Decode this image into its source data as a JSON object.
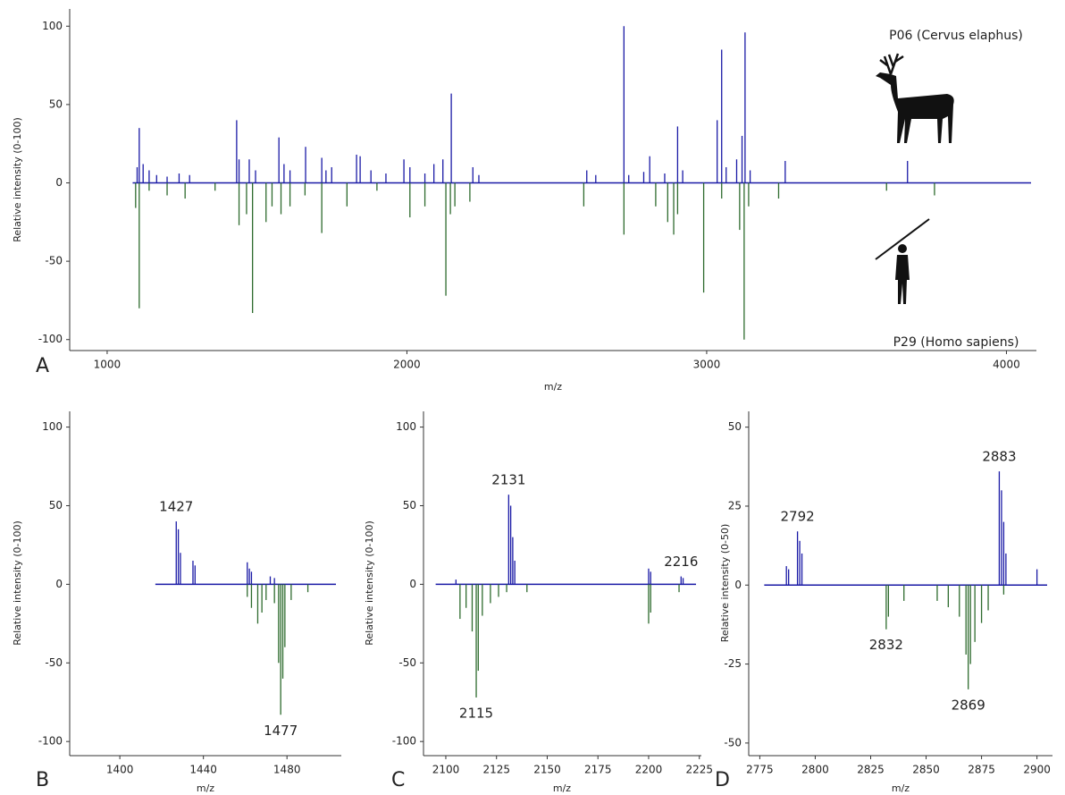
{
  "chart_data": [
    {
      "type": "stem",
      "panel": "A",
      "xlabel": "m/z",
      "ylabel": "Relative intensity (0-100)",
      "xlim": [
        875,
        4100
      ],
      "ylim": [
        -107,
        111
      ],
      "xticks": [
        1000,
        2000,
        3000,
        4000
      ],
      "yticks": [
        -100,
        -50,
        0,
        50,
        100
      ],
      "series": [
        {
          "name": "P06 (Cervus elaphus)",
          "color": "#1a1aa6",
          "x": [
            1100,
            1107,
            1120,
            1140,
            1165,
            1200,
            1240,
            1275,
            1432,
            1440,
            1474,
            1495,
            1573,
            1590,
            1610,
            1662,
            1716,
            1730,
            1749,
            1832,
            1844,
            1880,
            1930,
            1990,
            2010,
            2060,
            2090,
            2120,
            2148,
            2220,
            2240,
            2600,
            2630,
            2724,
            2740,
            2790,
            2810,
            2860,
            2903,
            2920,
            3035,
            3050,
            3065,
            3100,
            3118,
            3128,
            3145,
            3262,
            3670
          ],
          "values": [
            10,
            35,
            12,
            8,
            5,
            4,
            6,
            5,
            40,
            15,
            15,
            8,
            29,
            12,
            8,
            23,
            16,
            8,
            10,
            18,
            17,
            8,
            6,
            15,
            10,
            6,
            12,
            15,
            57,
            10,
            5,
            8,
            5,
            100,
            5,
            7,
            17,
            6,
            36,
            8,
            40,
            85,
            10,
            15,
            30,
            96,
            8,
            14,
            14
          ]
        },
        {
          "name": "P29 (Homo sapiens)",
          "color": "#2e6b2e",
          "x": [
            1095,
            1107,
            1140,
            1200,
            1260,
            1360,
            1440,
            1465,
            1485,
            1530,
            1550,
            1580,
            1610,
            1660,
            1716,
            1800,
            1900,
            2010,
            2060,
            2130,
            2145,
            2160,
            2210,
            2590,
            2724,
            2830,
            2870,
            2890,
            2903,
            2990,
            3050,
            3110,
            3125,
            3140,
            3240,
            3600,
            3760
          ],
          "values": [
            -16,
            -80,
            -5,
            -8,
            -10,
            -5,
            -27,
            -20,
            -83,
            -25,
            -15,
            -20,
            -15,
            -8,
            -32,
            -15,
            -5,
            -22,
            -15,
            -72,
            -20,
            -15,
            -12,
            -15,
            -33,
            -15,
            -25,
            -33,
            -20,
            -70,
            -10,
            -30,
            -100,
            -15,
            -10,
            -5,
            -8
          ]
        }
      ]
    },
    {
      "type": "stem",
      "panel": "B",
      "xlabel": "m/z",
      "ylabel": "Relative intensity (0-100)",
      "xlim": [
        1376,
        1506
      ],
      "ylim": [
        -109,
        110
      ],
      "xticks": [
        1400,
        1440,
        1480
      ],
      "yticks": [
        -100,
        -50,
        0,
        50,
        100
      ],
      "peak_labels": [
        1427,
        1477
      ],
      "series": [
        {
          "color": "#1a1aa6",
          "x": [
            1427,
            1428,
            1429,
            1435,
            1436,
            1461,
            1462,
            1463,
            1472,
            1474
          ],
          "values": [
            40,
            35,
            20,
            15,
            12,
            14,
            10,
            8,
            5,
            4
          ]
        },
        {
          "color": "#2e6b2e",
          "x": [
            1461,
            1463,
            1466,
            1468,
            1470,
            1474,
            1476,
            1477,
            1478,
            1479,
            1482,
            1490
          ],
          "values": [
            -8,
            -15,
            -25,
            -18,
            -10,
            -12,
            -50,
            -83,
            -60,
            -40,
            -10,
            -5
          ]
        }
      ]
    },
    {
      "type": "stem",
      "panel": "C",
      "xlabel": "m/z",
      "ylabel": "Relative intensity (0-100)",
      "xlim": [
        2089,
        2226
      ],
      "ylim": [
        -109,
        110
      ],
      "xticks": [
        2100,
        2125,
        2150,
        2175,
        2200,
        2225
      ],
      "yticks": [
        -100,
        -50,
        0,
        50,
        100
      ],
      "peak_labels": [
        2131,
        2115,
        2216
      ],
      "series": [
        {
          "color": "#1a1aa6",
          "x": [
            2105,
            2131,
            2132,
            2133,
            2134,
            2200,
            2201,
            2216,
            2217
          ],
          "values": [
            3,
            57,
            50,
            30,
            15,
            10,
            8,
            5,
            4
          ]
        },
        {
          "color": "#2e6b2e",
          "x": [
            2107,
            2110,
            2113,
            2115,
            2116,
            2118,
            2122,
            2126,
            2130,
            2140,
            2200,
            2201,
            2215
          ],
          "values": [
            -22,
            -15,
            -30,
            -72,
            -55,
            -20,
            -12,
            -8,
            -5,
            -5,
            -25,
            -18,
            -5
          ]
        }
      ]
    },
    {
      "type": "stem",
      "panel": "D",
      "xlabel": "m/z",
      "ylabel": "Relative intensity (0-50)",
      "xlim": [
        2770,
        2907
      ],
      "ylim": [
        -54,
        55
      ],
      "xticks": [
        2775,
        2800,
        2825,
        2850,
        2875,
        2900
      ],
      "yticks": [
        -50,
        -25,
        0,
        25,
        50
      ],
      "peak_labels": [
        2792,
        2832,
        2883,
        2869
      ],
      "series": [
        {
          "color": "#1a1aa6",
          "x": [
            2787,
            2788,
            2792,
            2793,
            2794,
            2883,
            2884,
            2885,
            2886,
            2900
          ],
          "values": [
            6,
            5,
            17,
            14,
            10,
            36,
            30,
            20,
            10,
            5
          ]
        },
        {
          "color": "#2e6b2e",
          "x": [
            2832,
            2833,
            2840,
            2855,
            2860,
            2865,
            2868,
            2869,
            2870,
            2872,
            2875,
            2878,
            2885
          ],
          "values": [
            -14,
            -10,
            -5,
            -5,
            -7,
            -10,
            -22,
            -33,
            -25,
            -18,
            -12,
            -8,
            -3
          ]
        }
      ]
    }
  ]
}
